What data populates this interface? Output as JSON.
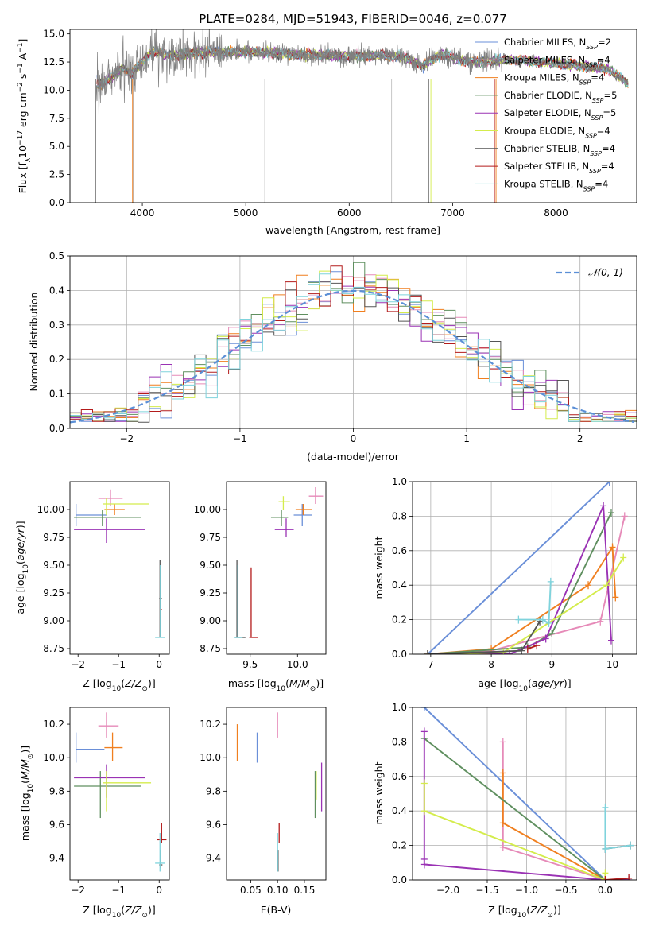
{
  "title": "PLATE=0284, MJD=51943, FIBERID=0046, z=0.077",
  "colors": {
    "Chabrier MILES": "#6a8fd8",
    "Salpeter MILES": "#e68ab8",
    "Kroupa MILES": "#f07f1f",
    "Chabrier ELODIE": "#5f8f5f",
    "Salpeter ELODIE": "#9a32b4",
    "Kroupa ELODIE": "#d4ec4c",
    "Chabrier STELIB": "#555555",
    "Salpeter STELIB": "#b31b1b",
    "Kroupa STELIB": "#7fd3dc",
    "data": "#808080",
    "normal": "#5b8fd6"
  },
  "chart_data": [
    {
      "id": "spectrum",
      "type": "line",
      "xlabel": "wavelength [Angstrom, rest frame]",
      "ylabel": "Flux [fλ10⁻¹⁷ erg cm⁻² s⁻¹ A⁻¹]",
      "xlim": [
        3300,
        8780
      ],
      "ylim": [
        0,
        15.4
      ],
      "xticks": [
        4000,
        5000,
        6000,
        7000,
        8000
      ],
      "yticks": [
        0.0,
        2.5,
        5.0,
        7.5,
        10.0,
        12.5,
        15.0
      ],
      "legend": [
        "Chabrier MILES, N_SSP=2",
        "Salpeter MILES, N_SSP=4",
        "Kroupa MILES, N_SSP=4",
        "Chabrier ELODIE, N_SSP=5",
        "Salpeter ELODIE, N_SSP=5",
        "Kroupa ELODIE, N_SSP=4",
        "Chabrier STELIB, N_SSP=4",
        "Salpeter STELIB, N_SSP=4",
        "Kroupa STELIB, N_SSP=4"
      ],
      "legend_labels": [
        [
          "Chabrier MILES, N",
          "SSP",
          "=2"
        ],
        [
          "Salpeter MILES, N",
          "SSP",
          "=4"
        ],
        [
          "Kroupa MILES, N",
          "SSP",
          "=4"
        ],
        [
          "Chabrier ELODIE, N",
          "SSP",
          "=5"
        ],
        [
          "Salpeter ELODIE, N",
          "SSP",
          "=5"
        ],
        [
          "Kroupa ELODIE, N",
          "SSP",
          "=4"
        ],
        [
          "Chabrier STELIB, N",
          "SSP",
          "=4"
        ],
        [
          "Salpeter STELIB, N",
          "SSP",
          "=4"
        ],
        [
          "Kroupa STELIB, N",
          "SSP",
          "=4"
        ]
      ],
      "legend_placement": "right",
      "continuum_wavelength": [
        3550,
        3700,
        3800,
        3900,
        4000,
        4100,
        4300,
        4500,
        5000,
        5500,
        6000,
        6300,
        6500,
        6700,
        6900,
        7100,
        7300,
        7500,
        8000,
        8500,
        8700
      ],
      "continuum_flux": [
        10.5,
        11.0,
        12.0,
        11.5,
        12.5,
        13.5,
        13.0,
        13.3,
        13.4,
        13.2,
        13.0,
        13.1,
        13.0,
        12.2,
        13.2,
        12.6,
        12.5,
        12.7,
        12.4,
        11.9,
        10.6
      ]
    },
    {
      "id": "residuals",
      "type": "histogram",
      "xlabel": "(data-model)/error",
      "ylabel": "Normed distribution",
      "xlim": [
        -2.5,
        2.5
      ],
      "ylim": [
        0,
        0.5
      ],
      "xticks": [
        -2,
        -1,
        0,
        1,
        2
      ],
      "yticks": [
        0.0,
        0.1,
        0.2,
        0.3,
        0.4,
        0.5
      ],
      "bin_width": 0.1,
      "legend": [
        "𝒩(0, 1)"
      ],
      "legend_placement": "top-right",
      "grid": true
    },
    {
      "id": "age-vs-Z",
      "type": "errorbar",
      "xlabel": "Z [log₁₀(Z/Z⊙)]",
      "ylabel": "age  [log₁₀(age/yr)]",
      "xlim": [
        -2.2,
        0.25
      ],
      "ylim": [
        8.7,
        10.25
      ],
      "xticks": [
        -2,
        -1,
        0
      ],
      "yticks": [
        8.75,
        9.0,
        9.25,
        9.5,
        9.75,
        10.0
      ],
      "points": [
        {
          "c": "Chabrier MILES",
          "x": -2.05,
          "xl": -2.05,
          "xh": -1.3,
          "y": 9.95,
          "yl": 9.85,
          "yh": 10.05
        },
        {
          "c": "Salpeter MILES",
          "x": -1.2,
          "xl": -1.5,
          "xh": -0.9,
          "y": 10.1,
          "yl": 10.03,
          "yh": 10.18
        },
        {
          "c": "Kroupa MILES",
          "x": -1.1,
          "xl": -1.35,
          "xh": -0.85,
          "y": 10.0,
          "yl": 9.95,
          "yh": 10.05
        },
        {
          "c": "Chabrier ELODIE",
          "x": -1.4,
          "xl": -2.1,
          "xh": -0.45,
          "y": 9.93,
          "yl": 9.85,
          "yh": 10.0
        },
        {
          "c": "Salpeter ELODIE",
          "x": -1.3,
          "xl": -2.1,
          "xh": -0.35,
          "y": 9.82,
          "yl": 9.7,
          "yh": 9.92
        },
        {
          "c": "Kroupa ELODIE",
          "x": -1.3,
          "xl": -1.38,
          "xh": -0.25,
          "y": 10.05,
          "yl": 9.95,
          "yh": 10.1
        },
        {
          "c": "Chabrier STELIB",
          "x": 0.02,
          "xl": 0.0,
          "xh": 0.07,
          "y": 9.2,
          "yl": 8.85,
          "yh": 9.55
        },
        {
          "c": "Salpeter STELIB",
          "x": 0.04,
          "xl": 0.02,
          "xh": 0.07,
          "y": 9.1,
          "yl": 8.85,
          "yh": 9.48
        },
        {
          "c": "Kroupa STELIB",
          "x": 0.03,
          "xl": -0.1,
          "xh": 0.15,
          "y": 8.85,
          "yl": 8.85,
          "yh": 9.5
        }
      ]
    },
    {
      "id": "age-vs-mass",
      "type": "errorbar",
      "xlabel": "mass [log₁₀(M/M⊙)]",
      "xlim": [
        9.25,
        10.3
      ],
      "ylim": [
        8.7,
        10.25
      ],
      "xticks": [
        9.5,
        10.0
      ],
      "yticks": [
        8.75,
        9.0,
        9.25,
        9.5,
        9.75,
        10.0
      ],
      "points": [
        {
          "c": "Chabrier MILES",
          "x": 10.05,
          "xl": 9.96,
          "xh": 10.15,
          "y": 9.95,
          "yl": 9.85,
          "yh": 10.05
        },
        {
          "c": "Salpeter MILES",
          "x": 10.19,
          "xl": 10.12,
          "xh": 10.27,
          "y": 10.12,
          "yl": 10.05,
          "yh": 10.2
        },
        {
          "c": "Kroupa MILES",
          "x": 10.06,
          "xl": 9.98,
          "xh": 10.15,
          "y": 10.0,
          "yl": 9.95,
          "yh": 10.05
        },
        {
          "c": "Chabrier ELODIE",
          "x": 9.83,
          "xl": 9.72,
          "xh": 9.9,
          "y": 9.93,
          "yl": 9.85,
          "yh": 10.0
        },
        {
          "c": "Salpeter ELODIE",
          "x": 9.88,
          "xl": 9.76,
          "xh": 9.96,
          "y": 9.82,
          "yl": 9.75,
          "yh": 9.92
        },
        {
          "c": "Kroupa ELODIE",
          "x": 9.85,
          "xl": 9.8,
          "xh": 9.92,
          "y": 10.07,
          "yl": 10.0,
          "yh": 10.12
        },
        {
          "c": "Chabrier STELIB",
          "x": 9.36,
          "xl": 9.34,
          "xh": 9.45,
          "y": 8.85,
          "yl": 8.85,
          "yh": 9.55
        },
        {
          "c": "Salpeter STELIB",
          "x": 9.51,
          "xl": 9.49,
          "xh": 9.58,
          "y": 8.85,
          "yl": 8.85,
          "yh": 9.48
        },
        {
          "c": "Kroupa STELIB",
          "x": 9.37,
          "xl": 9.33,
          "xh": 9.42,
          "y": 8.85,
          "yl": 8.85,
          "yh": 9.5
        }
      ]
    },
    {
      "id": "mass-weight-vs-age",
      "type": "line",
      "xlabel": "age  [log₁₀(age/yr)]",
      "ylabel": "mass weight",
      "xlim": [
        6.7,
        10.4
      ],
      "ylim": [
        0,
        1
      ],
      "xticks": [
        7,
        8,
        9,
        10
      ],
      "yticks": [
        0.0,
        0.2,
        0.4,
        0.6,
        0.8,
        1.0
      ],
      "grid": true,
      "series": [
        {
          "c": "Chabrier MILES",
          "x": [
            6.95,
            9.95
          ],
          "y": [
            0.0,
            1.0
          ]
        },
        {
          "c": "Salpeter MILES",
          "x": [
            6.95,
            8.0,
            9.8,
            10.2
          ],
          "y": [
            0.0,
            0.02,
            0.19,
            0.8
          ]
        },
        {
          "c": "Kroupa MILES",
          "x": [
            6.95,
            8.0,
            9.6,
            10.0,
            10.05
          ],
          "y": [
            0.0,
            0.03,
            0.4,
            0.62,
            0.33
          ]
        },
        {
          "c": "Chabrier ELODIE",
          "x": [
            6.95,
            8.6,
            9.0,
            9.98
          ],
          "y": [
            0.0,
            0.04,
            0.12,
            0.82
          ]
        },
        {
          "c": "Salpeter ELODIE",
          "x": [
            6.95,
            8.3,
            8.9,
            9.85,
            9.98
          ],
          "y": [
            0.0,
            0.0,
            0.09,
            0.86,
            0.08
          ]
        },
        {
          "c": "Kroupa ELODIE",
          "x": [
            6.95,
            8.2,
            9.9,
            10.18
          ],
          "y": [
            0.0,
            0.01,
            0.4,
            0.56
          ]
        },
        {
          "c": "Chabrier STELIB",
          "x": [
            6.95,
            8.5,
            8.8
          ],
          "y": [
            0.0,
            0.02,
            0.19
          ]
        },
        {
          "c": "Salpeter STELIB",
          "x": [
            8.6,
            8.75
          ],
          "y": [
            0.03,
            0.05
          ]
        },
        {
          "c": "Kroupa STELIB",
          "x": [
            8.45,
            8.85,
            8.95,
            8.98
          ],
          "y": [
            0.2,
            0.2,
            0.18,
            0.42
          ]
        }
      ]
    },
    {
      "id": "mass-vs-Z",
      "type": "errorbar",
      "xlabel": "Z [log₁₀(Z/Z⊙)]",
      "ylabel": "mass [log₁₀(M/M⊙)]",
      "xlim": [
        -2.2,
        0.25
      ],
      "ylim": [
        9.27,
        10.3
      ],
      "xticks": [
        -2,
        -1,
        0
      ],
      "yticks": [
        9.4,
        9.6,
        9.8,
        10.0,
        10.2
      ],
      "points": [
        {
          "c": "Chabrier MILES",
          "x": -2.05,
          "xl": -2.05,
          "xh": -1.35,
          "y": 10.05,
          "yl": 9.97,
          "yh": 10.15
        },
        {
          "c": "Salpeter MILES",
          "x": -1.3,
          "xl": -1.5,
          "xh": -1.0,
          "y": 10.19,
          "yl": 10.12,
          "yh": 10.27
        },
        {
          "c": "Kroupa MILES",
          "x": -1.15,
          "xl": -1.35,
          "xh": -0.9,
          "y": 10.06,
          "yl": 9.98,
          "yh": 10.15
        },
        {
          "c": "Chabrier ELODIE",
          "x": -1.45,
          "xl": -2.1,
          "xh": -0.45,
          "y": 9.83,
          "yl": 9.64,
          "yh": 9.92
        },
        {
          "c": "Salpeter ELODIE",
          "x": -1.3,
          "xl": -2.1,
          "xh": -0.35,
          "y": 9.88,
          "yl": 9.76,
          "yh": 9.96
        },
        {
          "c": "Kroupa ELODIE",
          "x": -1.3,
          "xl": -1.38,
          "xh": -0.2,
          "y": 9.85,
          "yl": 9.68,
          "yh": 9.92
        },
        {
          "c": "Chabrier STELIB",
          "x": 0.04,
          "xl": 0.0,
          "xh": 0.08,
          "y": 9.36,
          "yl": 9.34,
          "yh": 9.45
        },
        {
          "c": "Salpeter STELIB",
          "x": 0.06,
          "xl": -0.05,
          "xh": 0.18,
          "y": 9.51,
          "yl": 9.49,
          "yh": 9.61
        },
        {
          "c": "Kroupa STELIB",
          "x": 0.02,
          "xl": -0.1,
          "xh": 0.15,
          "y": 9.37,
          "yl": 9.32,
          "yh": 9.55
        }
      ]
    },
    {
      "id": "mass-vs-EBV",
      "type": "errorbar",
      "xlabel": "E(B-V)",
      "xlim": [
        0.005,
        0.19
      ],
      "ylim": [
        9.27,
        10.3
      ],
      "xticks": [
        0.05,
        0.1,
        0.15
      ],
      "yticks": [
        9.4,
        9.6,
        9.8,
        10.0,
        10.2
      ],
      "points": [
        {
          "c": "Chabrier MILES",
          "x": 0.062,
          "y": 10.05,
          "yl": 9.97,
          "yh": 10.15
        },
        {
          "c": "Salpeter MILES",
          "x": 0.1,
          "y": 10.19,
          "yl": 10.12,
          "yh": 10.27
        },
        {
          "c": "Kroupa MILES",
          "x": 0.025,
          "y": 10.06,
          "yl": 9.98,
          "yh": 10.2
        },
        {
          "c": "Chabrier ELODIE",
          "x": 0.17,
          "y": 9.83,
          "yl": 9.64,
          "yh": 9.92
        },
        {
          "c": "Salpeter ELODIE",
          "x": 0.182,
          "y": 9.88,
          "yl": 9.68,
          "yh": 9.97
        },
        {
          "c": "Kroupa ELODIE",
          "x": 0.172,
          "y": 9.85,
          "yl": 9.75,
          "yh": 9.92
        },
        {
          "c": "Chabrier STELIB",
          "x": 0.101,
          "y": 9.36,
          "yl": 9.32,
          "yh": 9.45
        },
        {
          "c": "Salpeter STELIB",
          "x": 0.103,
          "y": 9.51,
          "yl": 9.49,
          "yh": 9.61
        },
        {
          "c": "Kroupa STELIB",
          "x": 0.1,
          "y": 9.37,
          "yl": 9.32,
          "yh": 9.55
        }
      ]
    },
    {
      "id": "mass-weight-vs-Z",
      "type": "line",
      "xlabel": "Z [log₁₀(Z/Z⊙)]",
      "ylabel": "mass weight",
      "xlim": [
        -2.45,
        0.4
      ],
      "ylim": [
        0,
        1
      ],
      "xticks": [
        -2.0,
        -1.5,
        -1.0,
        -0.5,
        0.0
      ],
      "yticks": [
        0.0,
        0.2,
        0.4,
        0.6,
        0.8,
        1.0
      ],
      "grid": true,
      "series": [
        {
          "c": "Chabrier MILES",
          "x": [
            -2.3,
            0.0
          ],
          "y": [
            1.0,
            0.0
          ]
        },
        {
          "c": "Salpeter MILES",
          "x": [
            -1.3,
            -1.3,
            0.0
          ],
          "y": [
            0.8,
            0.19,
            0.0
          ]
        },
        {
          "c": "Kroupa MILES",
          "x": [
            -1.3,
            -1.3,
            0.0
          ],
          "y": [
            0.62,
            0.33,
            0.0
          ]
        },
        {
          "c": "Chabrier ELODIE",
          "x": [
            -2.3,
            0.0
          ],
          "y": [
            0.82,
            0.0
          ]
        },
        {
          "c": "Salpeter ELODIE",
          "x": [
            -2.3,
            -2.3,
            -2.3,
            0.0,
            0.3
          ],
          "y": [
            0.86,
            0.12,
            0.09,
            0.0,
            0.0
          ]
        },
        {
          "c": "Kroupa ELODIE",
          "x": [
            -2.3,
            -2.3,
            0.0,
            0.0
          ],
          "y": [
            0.56,
            0.4,
            0.0,
            0.04
          ]
        },
        {
          "c": "Chabrier STELIB",
          "x": [
            0.0,
            0.32
          ],
          "y": [
            0.18,
            0.2
          ]
        },
        {
          "c": "Salpeter STELIB",
          "x": [
            0.0,
            0.3
          ],
          "y": [
            0.0,
            0.01
          ]
        },
        {
          "c": "Kroupa STELIB",
          "x": [
            0.0,
            0.0,
            0.32
          ],
          "y": [
            0.42,
            0.18,
            0.2
          ]
        }
      ]
    }
  ]
}
